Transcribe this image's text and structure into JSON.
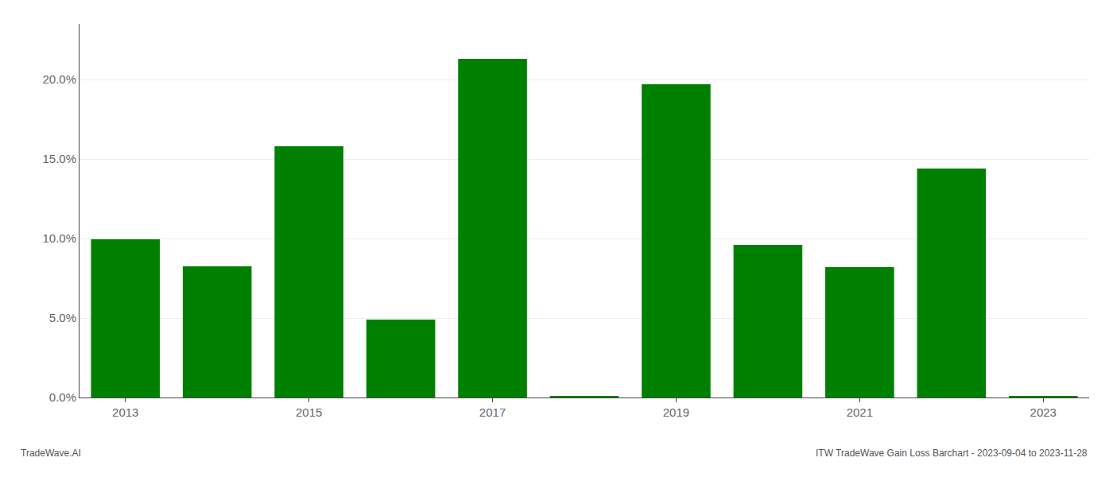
{
  "chart_data": {
    "type": "bar",
    "categories": [
      "2013",
      null,
      "2015",
      null,
      "2017",
      null,
      "2019",
      null,
      "2021",
      null,
      "2023"
    ],
    "values": [
      0.0995,
      0.0825,
      0.158,
      0.049,
      0.213,
      0.001,
      0.197,
      0.096,
      0.082,
      0.144,
      0.001
    ],
    "color": "#008000",
    "ylim": [
      0,
      0.235
    ],
    "yticks": [
      {
        "value": 0.0,
        "label": "0.0%"
      },
      {
        "value": 0.05,
        "label": "5.0%"
      },
      {
        "value": 0.1,
        "label": "10.0%"
      },
      {
        "value": 0.15,
        "label": "15.0%"
      },
      {
        "value": 0.2,
        "label": "20.0%"
      }
    ],
    "grid": true,
    "annotations": [
      "TradeWave.AI",
      "ITW TradeWave Gain Loss Barchart - 2023-09-04 to 2023-11-28"
    ]
  }
}
